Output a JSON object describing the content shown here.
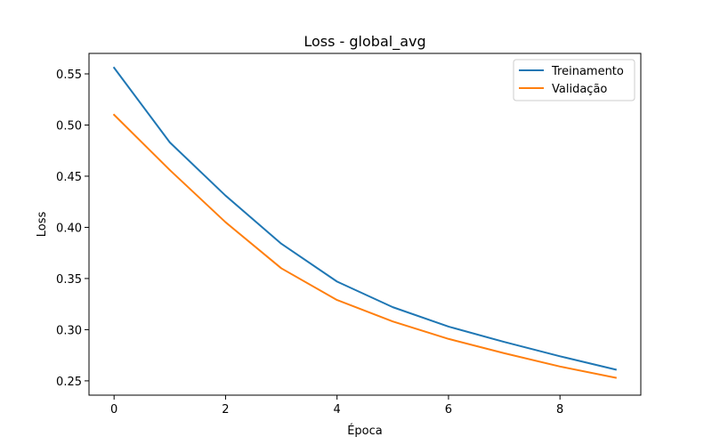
{
  "chart_data": {
    "type": "line",
    "title": "Loss - global_avg",
    "xlabel": "Época",
    "ylabel": "Loss",
    "xlim": [
      -0.45,
      9.45
    ],
    "ylim": [
      0.236,
      0.57
    ],
    "xticks": [
      0,
      2,
      4,
      6,
      8
    ],
    "yticks": [
      0.25,
      0.3,
      0.35,
      0.4,
      0.45,
      0.5,
      0.55
    ],
    "x": [
      0,
      1,
      2,
      3,
      4,
      5,
      6,
      7,
      8,
      9
    ],
    "grid": false,
    "legend_position": "top-right",
    "series": [
      {
        "name": "Treinamento",
        "color": "#1f77b4",
        "values": [
          0.556,
          0.483,
          0.431,
          0.384,
          0.347,
          0.322,
          0.303,
          0.288,
          0.274,
          0.261
        ]
      },
      {
        "name": "Validação",
        "color": "#ff7f0e",
        "values": [
          0.51,
          0.456,
          0.405,
          0.36,
          0.329,
          0.308,
          0.291,
          0.277,
          0.264,
          0.253
        ]
      }
    ]
  }
}
